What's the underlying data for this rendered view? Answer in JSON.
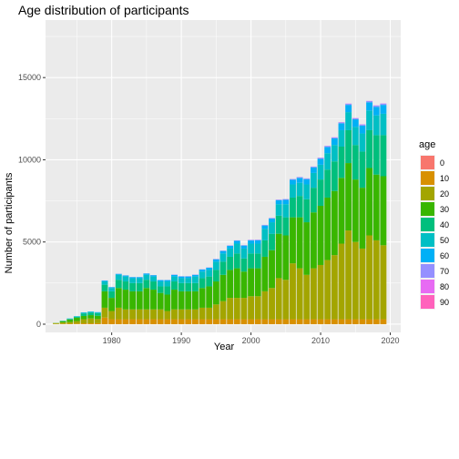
{
  "chart_data": {
    "type": "bar",
    "stacked": true,
    "title": "Age distribution of participants",
    "xlabel": "Year",
    "ylabel": "Number of participants",
    "xlim": [
      1970.5,
      2021.5
    ],
    "ylim": [
      -500,
      18500
    ],
    "x_ticks": [
      1980,
      1990,
      2000,
      2010,
      2020
    ],
    "y_ticks": [
      0,
      5000,
      10000,
      15000
    ],
    "y_tick_labels": [
      "0",
      "5000",
      "10000",
      "15000"
    ],
    "legend": {
      "title": "age",
      "position": "right"
    },
    "background": "#ebebeb",
    "grid": true,
    "years": [
      1972,
      1973,
      1974,
      1975,
      1976,
      1977,
      1978,
      1979,
      1980,
      1981,
      1982,
      1983,
      1984,
      1985,
      1986,
      1987,
      1988,
      1989,
      1990,
      1991,
      1992,
      1993,
      1994,
      1995,
      1996,
      1997,
      1998,
      1999,
      2000,
      2001,
      2002,
      2003,
      2004,
      2005,
      2006,
      2007,
      2008,
      2009,
      2010,
      2011,
      2012,
      2013,
      2014,
      2015,
      2016,
      2017,
      2018,
      2019
    ],
    "series": [
      {
        "name": "0",
        "color": "#F8766D",
        "values": [
          0,
          0,
          0,
          0,
          0,
          0,
          0,
          0,
          0,
          0,
          0,
          0,
          0,
          0,
          0,
          0,
          0,
          0,
          0,
          0,
          0,
          0,
          0,
          0,
          0,
          0,
          0,
          0,
          0,
          0,
          0,
          0,
          0,
          0,
          0,
          0,
          0,
          0,
          0,
          0,
          0,
          0,
          0,
          0,
          0,
          0,
          0,
          0
        ]
      },
      {
        "name": "10",
        "color": "#D89000",
        "values": [
          20,
          20,
          30,
          40,
          50,
          50,
          60,
          400,
          300,
          300,
          300,
          300,
          300,
          300,
          300,
          300,
          300,
          300,
          300,
          300,
          300,
          300,
          300,
          300,
          300,
          300,
          300,
          300,
          300,
          300,
          300,
          300,
          300,
          300,
          300,
          300,
          300,
          300,
          300,
          300,
          300,
          300,
          300,
          300,
          300,
          300,
          300,
          300
        ]
      },
      {
        "name": "20",
        "color": "#A3A500",
        "values": [
          30,
          80,
          100,
          150,
          250,
          300,
          250,
          600,
          500,
          700,
          600,
          600,
          600,
          600,
          600,
          600,
          500,
          600,
          600,
          600,
          600,
          700,
          700,
          900,
          1100,
          1300,
          1300,
          1300,
          1400,
          1400,
          1700,
          1900,
          2500,
          2400,
          3400,
          3100,
          2700,
          3100,
          3300,
          3600,
          3900,
          4600,
          5400,
          4700,
          4300,
          5100,
          4800,
          4500
        ]
      },
      {
        "name": "30",
        "color": "#39B600",
        "values": [
          20,
          80,
          150,
          200,
          200,
          200,
          200,
          1000,
          800,
          1200,
          1200,
          1100,
          1100,
          1300,
          1200,
          1000,
          1000,
          1200,
          1100,
          1100,
          1100,
          1200,
          1300,
          1400,
          1600,
          1700,
          1800,
          1600,
          1700,
          1700,
          2100,
          2300,
          2700,
          2700,
          2800,
          3100,
          3200,
          3400,
          3600,
          3800,
          3900,
          4000,
          4100,
          3800,
          3700,
          4100,
          4000,
          4200
        ]
      },
      {
        "name": "40",
        "color": "#00BF7D",
        "values": [
          0,
          20,
          40,
          60,
          150,
          150,
          150,
          400,
          400,
          500,
          500,
          500,
          500,
          500,
          500,
          400,
          500,
          500,
          500,
          500,
          500,
          600,
          600,
          700,
          800,
          800,
          900,
          800,
          900,
          900,
          1000,
          1000,
          1100,
          1100,
          1200,
          1300,
          1400,
          1500,
          1600,
          1700,
          1800,
          1900,
          2000,
          2100,
          2200,
          2300,
          2400,
          2500
        ]
      },
      {
        "name": "50",
        "color": "#00BFC4",
        "values": [
          0,
          10,
          20,
          30,
          50,
          50,
          50,
          200,
          200,
          300,
          300,
          300,
          300,
          300,
          300,
          300,
          300,
          300,
          300,
          300,
          400,
          400,
          400,
          500,
          500,
          500,
          600,
          600,
          600,
          600,
          700,
          700,
          700,
          800,
          800,
          800,
          900,
          900,
          900,
          1000,
          1000,
          1000,
          1100,
          1100,
          1100,
          1200,
          1200,
          1300
        ]
      },
      {
        "name": "60",
        "color": "#00B0F6",
        "values": [
          0,
          0,
          10,
          10,
          20,
          20,
          20,
          50,
          50,
          60,
          60,
          60,
          60,
          80,
          80,
          80,
          80,
          100,
          100,
          100,
          100,
          120,
          130,
          140,
          150,
          160,
          170,
          180,
          190,
          200,
          200,
          220,
          240,
          260,
          280,
          300,
          320,
          340,
          360,
          380,
          400,
          420,
          440,
          460,
          480,
          500,
          520,
          540
        ]
      },
      {
        "name": "70",
        "color": "#9590FF",
        "values": [
          0,
          0,
          0,
          0,
          0,
          0,
          0,
          10,
          10,
          10,
          10,
          10,
          10,
          10,
          10,
          10,
          10,
          20,
          20,
          20,
          20,
          20,
          20,
          30,
          30,
          30,
          30,
          30,
          40,
          40,
          40,
          40,
          40,
          50,
          50,
          50,
          50,
          50,
          60,
          60,
          60,
          60,
          70,
          70,
          70,
          70,
          80,
          80
        ]
      },
      {
        "name": "80",
        "color": "#E76BF3",
        "values": [
          0,
          0,
          0,
          0,
          0,
          0,
          0,
          0,
          0,
          0,
          0,
          0,
          0,
          0,
          0,
          0,
          0,
          0,
          0,
          0,
          0,
          0,
          0,
          0,
          0,
          0,
          0,
          0,
          0,
          0,
          0,
          0,
          0,
          0,
          0,
          0,
          0,
          0,
          10,
          10,
          10,
          10,
          10,
          10,
          10,
          10,
          10,
          10
        ]
      },
      {
        "name": "90",
        "color": "#FF62BC",
        "values": [
          0,
          0,
          0,
          0,
          0,
          0,
          0,
          0,
          0,
          0,
          0,
          0,
          0,
          0,
          0,
          0,
          0,
          0,
          0,
          0,
          0,
          0,
          0,
          0,
          0,
          0,
          0,
          0,
          0,
          0,
          0,
          0,
          0,
          0,
          0,
          0,
          0,
          0,
          0,
          0,
          0,
          0,
          0,
          0,
          0,
          0,
          0,
          0
        ]
      }
    ]
  }
}
